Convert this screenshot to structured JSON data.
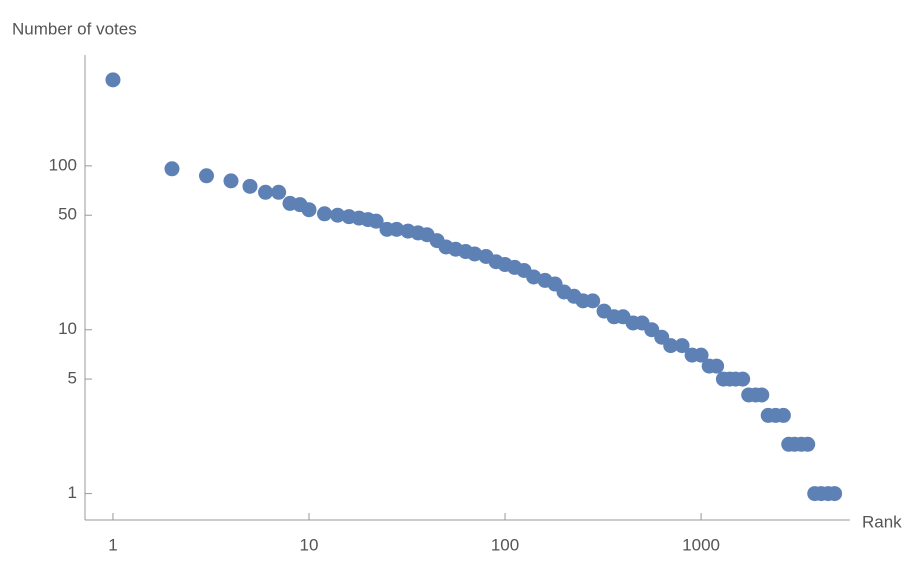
{
  "chart_data": {
    "type": "scatter",
    "y_label": "Number of votes",
    "x_label": "Rank",
    "log_x": true,
    "log_y": true,
    "color": "#5e81b5",
    "xlim": [
      0.72,
      5750
    ],
    "ylim": [
      0.69,
      475
    ],
    "xticks": [
      1,
      10,
      100,
      1000
    ],
    "yticks": [
      1,
      5,
      10,
      50,
      100
    ],
    "x": [
      1,
      2,
      3,
      4,
      5,
      6,
      7,
      8,
      9,
      10,
      12,
      14,
      16,
      18,
      20,
      22,
      25,
      28,
      32,
      36,
      40,
      45,
      50,
      56,
      63,
      70,
      80,
      90,
      100,
      112,
      125,
      140,
      160,
      180,
      200,
      225,
      250,
      280,
      320,
      360,
      400,
      450,
      500,
      560,
      630,
      700,
      800,
      900,
      1000,
      1100,
      1200,
      1300,
      1400,
      1500,
      1630,
      1750,
      1900,
      2040,
      2200,
      2400,
      2630,
      2800,
      3000,
      3250,
      3500,
      3800,
      4100,
      4450,
      4800
    ],
    "y": [
      335,
      96,
      87,
      81,
      75,
      69,
      69,
      59,
      58,
      54,
      51,
      50,
      49,
      48,
      47,
      46,
      41,
      41,
      40,
      39,
      38,
      35,
      32,
      31,
      30,
      29,
      28,
      26,
      25,
      24,
      23,
      21,
      20,
      19,
      17,
      16,
      15,
      15,
      13,
      12,
      12,
      11,
      11,
      10,
      9,
      8,
      8,
      7,
      7,
      6,
      6,
      5,
      5,
      5,
      5,
      4,
      4,
      4,
      3,
      3,
      3,
      2,
      2,
      2,
      2,
      1,
      1,
      1,
      1
    ]
  }
}
